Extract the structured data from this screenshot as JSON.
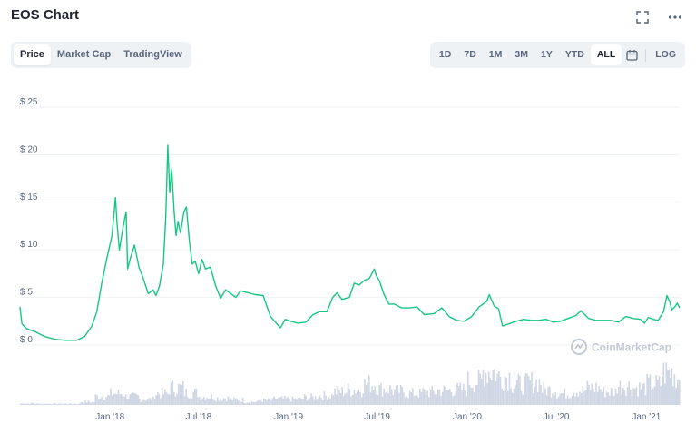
{
  "header": {
    "title": "EOS Chart"
  },
  "tabs": [
    {
      "label": "Price",
      "active": true
    },
    {
      "label": "Market Cap",
      "active": false
    },
    {
      "label": "TradingView",
      "active": false
    }
  ],
  "ranges": [
    {
      "label": "1D",
      "active": false
    },
    {
      "label": "7D",
      "active": false
    },
    {
      "label": "1M",
      "active": false
    },
    {
      "label": "3M",
      "active": false
    },
    {
      "label": "1Y",
      "active": false
    },
    {
      "label": "YTD",
      "active": false
    },
    {
      "label": "ALL",
      "active": true
    }
  ],
  "log_label": "LOG",
  "icons": {
    "fullscreen": "fullscreen-icon",
    "more": "more-icon",
    "calendar": "calendar-icon",
    "watermark": "coinmarketcap-logo-icon"
  },
  "watermark_text": "CoinMarketCap",
  "colors": {
    "line": "#16c784",
    "volume": "#cfd6e4",
    "grid": "#eff2f5",
    "text": "#58667e"
  },
  "chart_data": {
    "type": "line",
    "title": "EOS Chart",
    "ylim": [
      0,
      25
    ],
    "yticks": [
      {
        "value": 0,
        "label": "$ 0"
      },
      {
        "value": 5,
        "label": "$ 5"
      },
      {
        "value": 10,
        "label": "$ 10"
      },
      {
        "value": 15,
        "label": "$ 15"
      },
      {
        "value": 20,
        "label": "$ 20"
      },
      {
        "value": 25,
        "label": "$ 25"
      }
    ],
    "xlim": [
      "2017-07-01",
      "2021-03-10"
    ],
    "xticks": [
      {
        "date": "2018-01-01",
        "label": "Jan '18"
      },
      {
        "date": "2018-07-01",
        "label": "Jul '18"
      },
      {
        "date": "2019-01-01",
        "label": "Jan '19"
      },
      {
        "date": "2019-07-01",
        "label": "Jul '19"
      },
      {
        "date": "2020-01-01",
        "label": "Jan '20"
      },
      {
        "date": "2020-07-01",
        "label": "Jul '20"
      },
      {
        "date": "2021-01-01",
        "label": "Jan '21"
      }
    ],
    "grid": true,
    "series": [
      {
        "values": [
          [
            "2017-07-01",
            4.0
          ],
          [
            "2017-07-05",
            2.2
          ],
          [
            "2017-07-15",
            1.7
          ],
          [
            "2017-08-01",
            1.4
          ],
          [
            "2017-08-20",
            0.9
          ],
          [
            "2017-09-10",
            0.6
          ],
          [
            "2017-10-01",
            0.5
          ],
          [
            "2017-10-25",
            0.5
          ],
          [
            "2017-11-10",
            0.9
          ],
          [
            "2017-11-25",
            2.0
          ],
          [
            "2017-12-05",
            3.5
          ],
          [
            "2017-12-15",
            6.5
          ],
          [
            "2017-12-25",
            9.0
          ],
          [
            "2018-01-05",
            11.5
          ],
          [
            "2018-01-12",
            15.5
          ],
          [
            "2018-01-15",
            13.0
          ],
          [
            "2018-01-20",
            10.0
          ],
          [
            "2018-01-28",
            12.5
          ],
          [
            "2018-02-03",
            14.0
          ],
          [
            "2018-02-06",
            8.0
          ],
          [
            "2018-02-12",
            9.2
          ],
          [
            "2018-02-20",
            10.5
          ],
          [
            "2018-03-01",
            8.2
          ],
          [
            "2018-03-10",
            7.0
          ],
          [
            "2018-03-20",
            5.4
          ],
          [
            "2018-03-30",
            5.8
          ],
          [
            "2018-04-05",
            5.2
          ],
          [
            "2018-04-12",
            6.2
          ],
          [
            "2018-04-20",
            8.5
          ],
          [
            "2018-04-25",
            13.5
          ],
          [
            "2018-04-29",
            21.0
          ],
          [
            "2018-05-03",
            16.0
          ],
          [
            "2018-05-07",
            18.5
          ],
          [
            "2018-05-12",
            14.0
          ],
          [
            "2018-05-16",
            11.5
          ],
          [
            "2018-05-20",
            13.0
          ],
          [
            "2018-05-25",
            11.8
          ],
          [
            "2018-06-01",
            14.0
          ],
          [
            "2018-06-06",
            14.5
          ],
          [
            "2018-06-12",
            11.0
          ],
          [
            "2018-06-18",
            8.5
          ],
          [
            "2018-06-24",
            8.8
          ],
          [
            "2018-07-01",
            7.5
          ],
          [
            "2018-07-08",
            9.0
          ],
          [
            "2018-07-15",
            8.0
          ],
          [
            "2018-07-25",
            8.2
          ],
          [
            "2018-08-05",
            6.2
          ],
          [
            "2018-08-15",
            4.9
          ],
          [
            "2018-08-25",
            5.8
          ],
          [
            "2018-09-05",
            5.4
          ],
          [
            "2018-09-15",
            5.0
          ],
          [
            "2018-09-25",
            5.7
          ],
          [
            "2018-10-10",
            5.5
          ],
          [
            "2018-10-25",
            5.3
          ],
          [
            "2018-11-10",
            5.2
          ],
          [
            "2018-11-18",
            4.0
          ],
          [
            "2018-11-25",
            3.0
          ],
          [
            "2018-12-05",
            2.4
          ],
          [
            "2018-12-15",
            1.8
          ],
          [
            "2018-12-25",
            2.7
          ],
          [
            "2019-01-05",
            2.5
          ],
          [
            "2019-01-20",
            2.3
          ],
          [
            "2019-02-05",
            2.4
          ],
          [
            "2019-02-20",
            3.2
          ],
          [
            "2019-03-05",
            3.5
          ],
          [
            "2019-03-20",
            3.5
          ],
          [
            "2019-04-01",
            5.0
          ],
          [
            "2019-04-10",
            5.5
          ],
          [
            "2019-04-20",
            4.8
          ],
          [
            "2019-05-05",
            5.0
          ],
          [
            "2019-05-15",
            6.5
          ],
          [
            "2019-05-25",
            6.3
          ],
          [
            "2019-06-05",
            6.8
          ],
          [
            "2019-06-15",
            7.0
          ],
          [
            "2019-06-25",
            8.0
          ],
          [
            "2019-06-29",
            7.3
          ],
          [
            "2019-07-05",
            6.8
          ],
          [
            "2019-07-15",
            5.3
          ],
          [
            "2019-07-25",
            4.3
          ],
          [
            "2019-08-05",
            4.3
          ],
          [
            "2019-08-20",
            3.9
          ],
          [
            "2019-09-05",
            3.9
          ],
          [
            "2019-09-20",
            4.0
          ],
          [
            "2019-10-05",
            3.2
          ],
          [
            "2019-10-25",
            3.3
          ],
          [
            "2019-11-10",
            3.9
          ],
          [
            "2019-11-25",
            3.0
          ],
          [
            "2019-12-10",
            2.6
          ],
          [
            "2019-12-25",
            2.5
          ],
          [
            "2020-01-10",
            3.0
          ],
          [
            "2020-01-25",
            4.0
          ],
          [
            "2020-02-10",
            4.6
          ],
          [
            "2020-02-15",
            5.3
          ],
          [
            "2020-02-25",
            4.1
          ],
          [
            "2020-03-05",
            3.8
          ],
          [
            "2020-03-13",
            2.0
          ],
          [
            "2020-03-25",
            2.2
          ],
          [
            "2020-04-10",
            2.5
          ],
          [
            "2020-04-25",
            2.7
          ],
          [
            "2020-05-10",
            2.6
          ],
          [
            "2020-05-25",
            2.6
          ],
          [
            "2020-06-10",
            2.7
          ],
          [
            "2020-06-25",
            2.4
          ],
          [
            "2020-07-10",
            2.5
          ],
          [
            "2020-07-25",
            2.8
          ],
          [
            "2020-08-10",
            3.1
          ],
          [
            "2020-08-20",
            3.6
          ],
          [
            "2020-09-05",
            2.8
          ],
          [
            "2020-09-20",
            2.6
          ],
          [
            "2020-10-05",
            2.6
          ],
          [
            "2020-10-20",
            2.6
          ],
          [
            "2020-11-05",
            2.4
          ],
          [
            "2020-11-20",
            3.0
          ],
          [
            "2020-12-05",
            2.8
          ],
          [
            "2020-12-20",
            2.7
          ],
          [
            "2020-12-28",
            2.3
          ],
          [
            "2021-01-05",
            2.9
          ],
          [
            "2021-01-15",
            2.7
          ],
          [
            "2021-01-25",
            2.6
          ],
          [
            "2021-02-05",
            3.5
          ],
          [
            "2021-02-12",
            5.2
          ],
          [
            "2021-02-18",
            4.5
          ],
          [
            "2021-02-22",
            3.7
          ],
          [
            "2021-02-28",
            4.0
          ],
          [
            "2021-03-05",
            4.4
          ],
          [
            "2021-03-10",
            3.9
          ]
        ]
      }
    ],
    "volume": {
      "unit": "relative",
      "values": [
        [
          "2017-07",
          0.04
        ],
        [
          "2017-08",
          0.03
        ],
        [
          "2017-09",
          0.03
        ],
        [
          "2017-10",
          0.03
        ],
        [
          "2017-11",
          0.08
        ],
        [
          "2017-12",
          0.22
        ],
        [
          "2018-01",
          0.3
        ],
        [
          "2018-02",
          0.22
        ],
        [
          "2018-03",
          0.15
        ],
        [
          "2018-04",
          0.3
        ],
        [
          "2018-05",
          0.45
        ],
        [
          "2018-06",
          0.32
        ],
        [
          "2018-07",
          0.22
        ],
        [
          "2018-08",
          0.18
        ],
        [
          "2018-09",
          0.14
        ],
        [
          "2018-10",
          0.08
        ],
        [
          "2018-11",
          0.12
        ],
        [
          "2018-12",
          0.16
        ],
        [
          "2019-01",
          0.15
        ],
        [
          "2019-02",
          0.2
        ],
        [
          "2019-03",
          0.24
        ],
        [
          "2019-04",
          0.35
        ],
        [
          "2019-05",
          0.4
        ],
        [
          "2019-06",
          0.55
        ],
        [
          "2019-07",
          0.42
        ],
        [
          "2019-08",
          0.36
        ],
        [
          "2019-09",
          0.3
        ],
        [
          "2019-10",
          0.34
        ],
        [
          "2019-11",
          0.38
        ],
        [
          "2019-12",
          0.4
        ],
        [
          "2020-01",
          0.62
        ],
        [
          "2020-02",
          0.88
        ],
        [
          "2020-03",
          0.75
        ],
        [
          "2020-04",
          0.55
        ],
        [
          "2020-05",
          0.6
        ],
        [
          "2020-06",
          0.4
        ],
        [
          "2020-07",
          0.3
        ],
        [
          "2020-08",
          0.38
        ],
        [
          "2020-09",
          0.45
        ],
        [
          "2020-10",
          0.35
        ],
        [
          "2020-11",
          0.5
        ],
        [
          "2020-12",
          0.45
        ],
        [
          "2021-01",
          0.55
        ],
        [
          "2021-02",
          0.85
        ],
        [
          "2021-03",
          0.45
        ]
      ]
    }
  }
}
